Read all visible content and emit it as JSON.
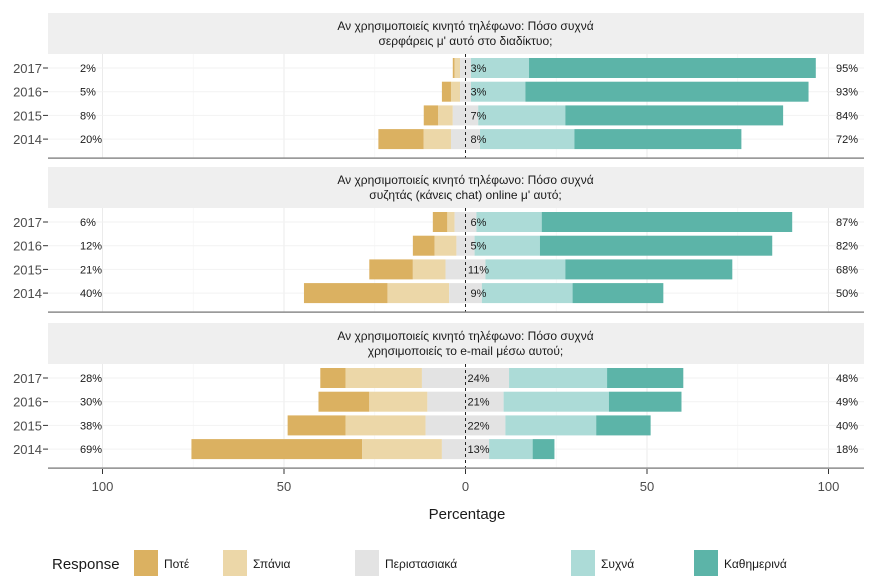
{
  "chart_data": {
    "type": "bar",
    "subtype": "diverging-stacked-likert",
    "xlabel": "Percentage",
    "x_ticks": [
      {
        "value": -100,
        "label": "100"
      },
      {
        "value": -50,
        "label": "50"
      },
      {
        "value": 0,
        "label": "0"
      },
      {
        "value": 50,
        "label": "50"
      },
      {
        "value": 100,
        "label": "100"
      }
    ],
    "xlim": [
      -100,
      100
    ],
    "grid": true,
    "legend": {
      "title": "Response",
      "placement": "bottom",
      "items": [
        {
          "name": "Ποτέ",
          "color": "#dbb161"
        },
        {
          "name": "Σπάνια",
          "color": "#ecd7a8"
        },
        {
          "name": "Περιστασιακά",
          "color": "#e3e3e3"
        },
        {
          "name": "Συχνά",
          "color": "#acdbd7"
        },
        {
          "name": "Καθημερινά",
          "color": "#5cb4a8"
        }
      ]
    },
    "panels": [
      {
        "title_line1": "Αν χρησιμοποιείς κινητό τηλέφωνο: Πόσο συχνά",
        "title_line2": "σερφάρεις μ' αυτό στο διαδίκτυο;",
        "rows": [
          {
            "year": "2017",
            "values": [
              0.5,
              1.5,
              3,
              16,
              79
            ],
            "left_label": "2%",
            "mid_label": "3%",
            "right_label": "95%"
          },
          {
            "year": "2016",
            "values": [
              2.5,
              2.5,
              3,
              15,
              78
            ],
            "left_label": "5%",
            "mid_label": "3%",
            "right_label": "93%"
          },
          {
            "year": "2015",
            "values": [
              4,
              4,
              7,
              24,
              60
            ],
            "left_label": "8%",
            "mid_label": "7%",
            "right_label": "84%"
          },
          {
            "year": "2014",
            "values": [
              12.5,
              7.5,
              8,
              26,
              46
            ],
            "left_label": "20%",
            "mid_label": "8%",
            "right_label": "72%"
          }
        ]
      },
      {
        "title_line1": "Αν χρησιμοποιείς κινητό τηλέφωνο: Πόσο συχνά",
        "title_line2": "συζητάς (κάνεις chat) online μ' αυτό;",
        "rows": [
          {
            "year": "2017",
            "values": [
              4,
              2,
              6,
              18,
              69
            ],
            "left_label": "6%",
            "mid_label": "6%",
            "right_label": "87%"
          },
          {
            "year": "2016",
            "values": [
              6,
              6,
              5,
              18,
              64
            ],
            "left_label": "12%",
            "mid_label": "5%",
            "right_label": "82%"
          },
          {
            "year": "2015",
            "values": [
              12,
              9,
              11,
              22,
              46
            ],
            "left_label": "21%",
            "mid_label": "11%",
            "right_label": "68%"
          },
          {
            "year": "2014",
            "values": [
              23,
              17,
              9,
              25,
              25
            ],
            "left_label": "40%",
            "mid_label": "9%",
            "right_label": "50%"
          }
        ]
      },
      {
        "title_line1": "Αν χρησιμοποιείς κινητό τηλέφωνο: Πόσο συχνά",
        "title_line2": "χρησιμοποιείς το e-mail μέσω αυτού;",
        "rows": [
          {
            "year": "2017",
            "values": [
              7,
              21,
              24,
              27,
              21
            ],
            "left_label": "28%",
            "mid_label": "24%",
            "right_label": "48%"
          },
          {
            "year": "2016",
            "values": [
              14,
              16,
              21,
              29,
              20
            ],
            "left_label": "30%",
            "mid_label": "21%",
            "right_label": "49%"
          },
          {
            "year": "2015",
            "values": [
              16,
              22,
              22,
              25,
              15
            ],
            "left_label": "38%",
            "mid_label": "22%",
            "right_label": "40%"
          },
          {
            "year": "2014",
            "values": [
              47,
              22,
              13,
              12,
              6
            ],
            "left_label": "69%",
            "mid_label": "13%",
            "right_label": "18%"
          }
        ]
      }
    ]
  }
}
